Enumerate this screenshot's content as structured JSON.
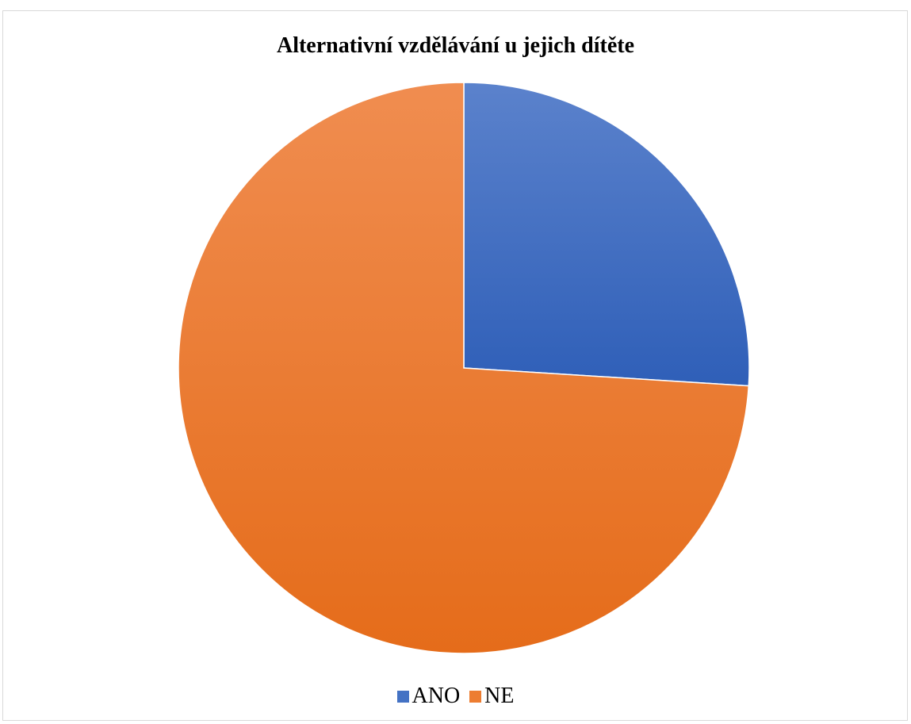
{
  "chart_data": {
    "type": "pie",
    "title": "Alternativní vzdělávání u jejich dítěte",
    "categories": [
      "ANO",
      "NE"
    ],
    "values": [
      26,
      74
    ],
    "colors": [
      "#4472c4",
      "#ed7d31"
    ],
    "legend_position": "bottom",
    "data_labels_shown": false
  }
}
